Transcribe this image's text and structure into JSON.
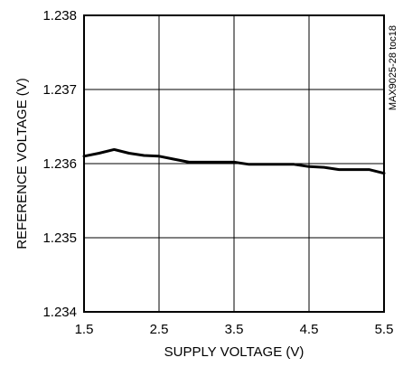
{
  "chart_data": {
    "type": "line",
    "title": "",
    "xlabel": "SUPPLY VOLTAGE (V)",
    "ylabel": "REFERENCE VOLTAGE (V)",
    "xlim": [
      1.5,
      5.5
    ],
    "ylim": [
      1.234,
      1.238
    ],
    "xticks": [
      1.5,
      2.5,
      3.5,
      4.5,
      5.5
    ],
    "xtick_labels": [
      "1.5",
      "2.5",
      "3.5",
      "4.5",
      "5.5"
    ],
    "yticks": [
      1.234,
      1.235,
      1.236,
      1.237,
      1.238
    ],
    "ytick_labels": [
      "1.234",
      "1.235",
      "1.236",
      "1.237",
      "1.238"
    ],
    "grid": true,
    "annotation": "MAX9025-28 toc18",
    "series": [
      {
        "color": "#000000",
        "x": [
          1.5,
          1.7,
          1.9,
          2.1,
          2.3,
          2.5,
          2.7,
          2.9,
          3.1,
          3.3,
          3.5,
          3.7,
          3.9,
          4.1,
          4.3,
          4.5,
          4.7,
          4.9,
          5.1,
          5.3,
          5.5
        ],
        "y": [
          1.2361,
          1.23614,
          1.23619,
          1.23614,
          1.23611,
          1.2361,
          1.23606,
          1.23602,
          1.23602,
          1.23602,
          1.23602,
          1.23599,
          1.23599,
          1.23599,
          1.23599,
          1.23596,
          1.23595,
          1.23592,
          1.23592,
          1.23592,
          1.23587
        ]
      }
    ]
  }
}
